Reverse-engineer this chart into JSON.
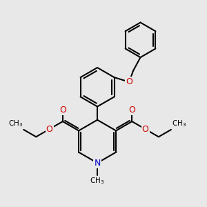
{
  "bg_color": "#e8e8e8",
  "bond_color": "#000000",
  "n_color": "#0000cc",
  "o_color": "#cc0000",
  "lw": 1.5,
  "figsize": [
    3.0,
    3.0
  ],
  "dpi": 100,
  "xlim": [
    0,
    10
  ],
  "ylim": [
    0,
    10
  ]
}
